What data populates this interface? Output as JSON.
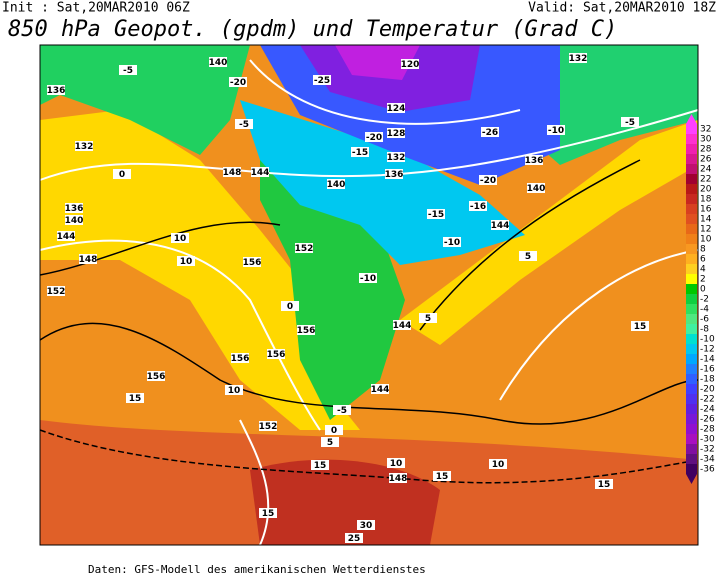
{
  "header": {
    "init": "Init : Sat,20MAR2010 06Z",
    "valid": "Valid: Sat,20MAR2010 18Z",
    "title": "850 hPa Geopot. (gpdm) und Temperatur (Grad C)"
  },
  "colorbar": {
    "ticks": [
      32,
      30,
      28,
      26,
      24,
      22,
      20,
      18,
      16,
      14,
      12,
      10,
      8,
      6,
      4,
      2,
      0,
      -2,
      -4,
      -6,
      -8,
      -10,
      -12,
      -14,
      -16,
      -18,
      -20,
      -22,
      -24,
      -26,
      -28,
      -30,
      -32,
      -34,
      -36
    ],
    "colors": [
      "#ff40ff",
      "#ff30d0",
      "#f020b0",
      "#d81890",
      "#c01070",
      "#a00030",
      "#b81818",
      "#c82820",
      "#d84020",
      "#e05020",
      "#e86818",
      "#f08018",
      "#f89820",
      "#ffb020",
      "#ffd020",
      "#ffff00",
      "#00c800",
      "#10d040",
      "#30e060",
      "#50e880",
      "#40f0a0",
      "#00e0d0",
      "#00c8f0",
      "#00a8ff",
      "#2080ff",
      "#3060ff",
      "#4040ff",
      "#5030f0",
      "#6020e0",
      "#7818d8",
      "#9010d0",
      "#a810c0",
      "#8010a0",
      "#601080",
      "#400060"
    ]
  },
  "map_labels": [
    "140",
    "-20",
    "-25",
    "120",
    "132",
    "-5",
    "136",
    "132",
    "0",
    "-5",
    "124",
    "128",
    "-20",
    "-15",
    "132",
    "136",
    "-26",
    "-10",
    "-5",
    "148",
    "144",
    "140",
    "-20",
    "136",
    "140",
    "-15",
    "-16",
    "136",
    "140",
    "144",
    "-10",
    "5",
    "144",
    "10",
    "152",
    "156",
    "-10",
    "148",
    "10",
    "0",
    "152",
    "156",
    "156",
    "156",
    "144",
    "5",
    "15",
    "156",
    "10",
    "15",
    "144",
    "152",
    "-5",
    "0",
    "5",
    "15",
    "10",
    "148",
    "15",
    "10",
    "15",
    "15",
    "30",
    "25"
  ],
  "footer": "Daten: GFS-Modell des amerikanischen Wetterdienstes"
}
